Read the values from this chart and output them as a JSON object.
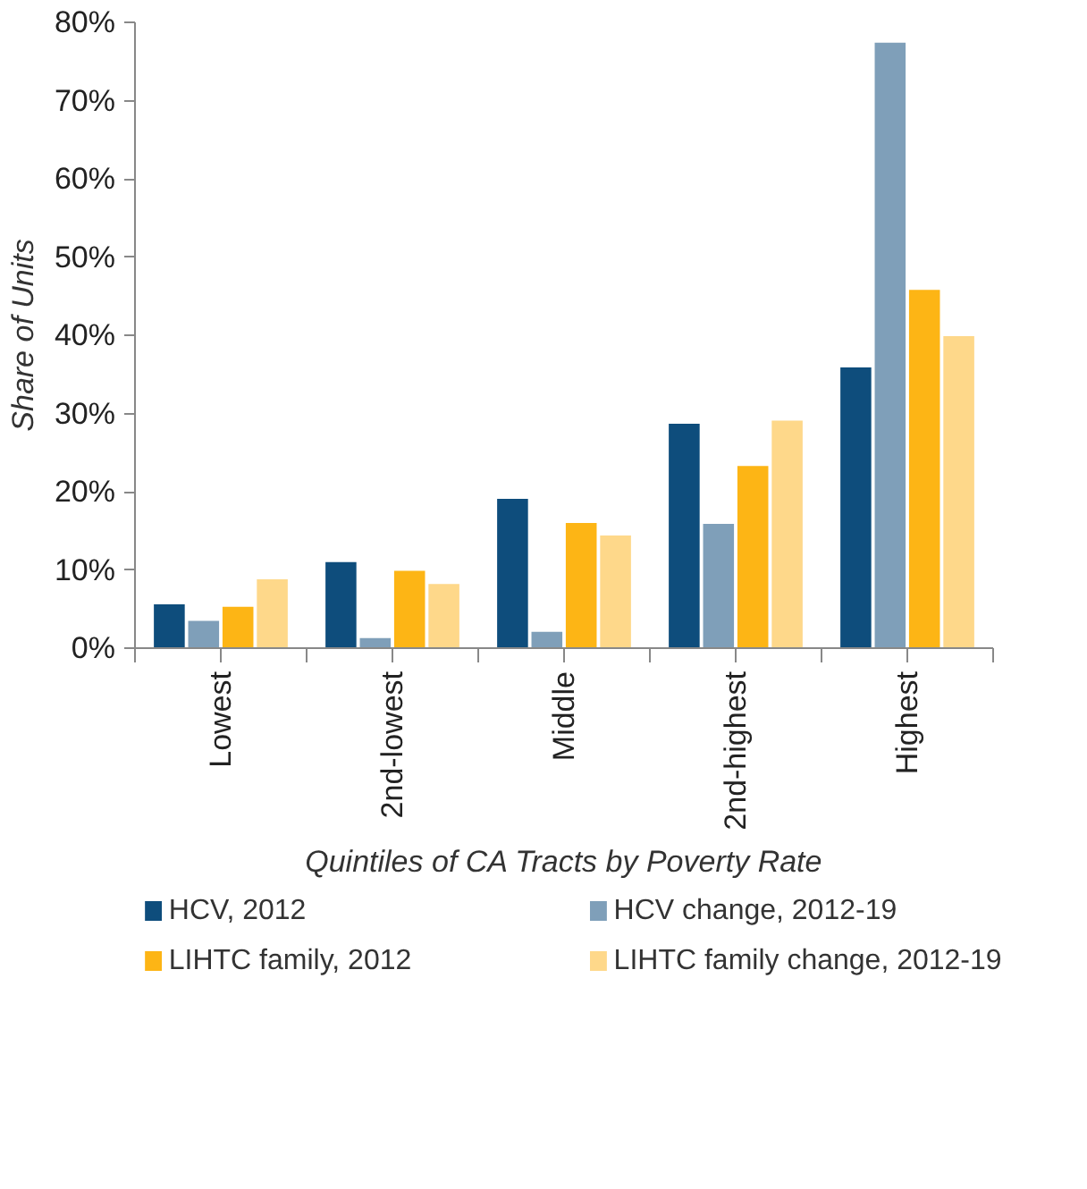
{
  "chart_data": {
    "type": "bar",
    "xlabel": "Quintiles of CA Tracts by Poverty Rate",
    "ylabel": "Share of Units",
    "categories": [
      "Lowest",
      "2nd-lowest",
      "Middle",
      "2nd-highest",
      "Highest"
    ],
    "series": [
      {
        "name": "HCV, 2012",
        "color": "#0e4d7c",
        "values": [
          5.6,
          11.0,
          19.1,
          28.7,
          35.9
        ]
      },
      {
        "name": "HCV change, 2012-19",
        "color": "#7f9fb9",
        "values": [
          3.5,
          1.3,
          2.1,
          15.9,
          77.4
        ]
      },
      {
        "name": "LIHTC family, 2012",
        "color": "#fdb515",
        "values": [
          5.3,
          9.9,
          16.0,
          23.3,
          45.8
        ]
      },
      {
        "name": "LIHTC family change, 2012-19",
        "color": "#fed88a",
        "values": [
          8.8,
          8.2,
          14.4,
          29.1,
          39.9
        ]
      }
    ],
    "ylim": [
      0,
      80
    ],
    "yticks": [
      {
        "value": 0,
        "label": "0%"
      },
      {
        "value": 10,
        "label": "10%"
      },
      {
        "value": 20,
        "label": "20%"
      },
      {
        "value": 30,
        "label": "30%"
      },
      {
        "value": 40,
        "label": "40%"
      },
      {
        "value": 50,
        "label": "50%"
      },
      {
        "value": 60,
        "label": "60%"
      },
      {
        "value": 70,
        "label": "70%"
      },
      {
        "value": 80,
        "label": "80%"
      }
    ],
    "legend": "bottom"
  }
}
